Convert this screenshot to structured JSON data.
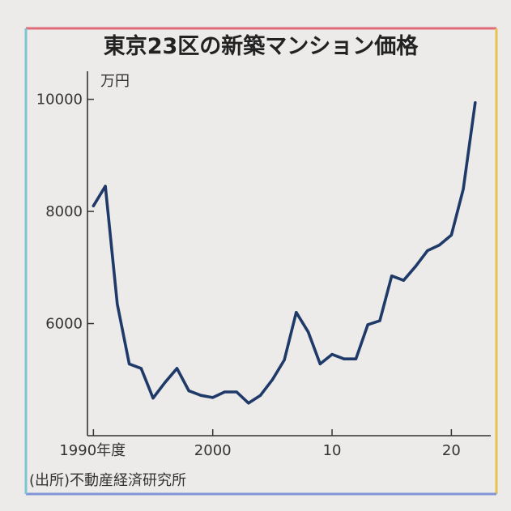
{
  "colors": {
    "background": "#ecebe9",
    "line": "#1f3a68",
    "border_top": "#e06b78",
    "border_right": "#e8c24a",
    "border_bottom": "#7f95d6",
    "border_left": "#7cc6cf",
    "axis": "#333333"
  },
  "chart_data": {
    "type": "line",
    "title": "東京23区の新築マンション価格",
    "unit_label": "万円",
    "source": "(出所)不動産経済研究所",
    "ylim": [
      4000,
      10500
    ],
    "xlim": [
      1989.5,
      2023.3
    ],
    "y_ticks": [
      {
        "value": 6000,
        "label": "6000"
      },
      {
        "value": 8000,
        "label": "8000"
      },
      {
        "value": 10000,
        "label": "10000"
      }
    ],
    "x_ticks": [
      {
        "value": 1990,
        "label": "1990年度"
      },
      {
        "value": 2000,
        "label": "2000"
      },
      {
        "value": 2010,
        "label": "10"
      },
      {
        "value": 2020,
        "label": "20"
      }
    ],
    "grid": false,
    "series": [
      {
        "x": [
          1990,
          1991,
          1992,
          1993,
          1994,
          1995,
          1996,
          1997,
          1998,
          1999,
          2000,
          2001,
          2002,
          2003,
          2004,
          2005,
          2006,
          2007,
          2008,
          2009,
          2010,
          2011,
          2012,
          2013,
          2014,
          2015,
          2016,
          2017,
          2018,
          2019,
          2020,
          2021,
          2022
        ],
        "values": [
          8100,
          8450,
          6350,
          5280,
          5200,
          4670,
          4950,
          5200,
          4800,
          4720,
          4680,
          4780,
          4780,
          4580,
          4720,
          5000,
          5350,
          6200,
          5850,
          5280,
          5450,
          5370,
          5370,
          5980,
          6050,
          6850,
          6770,
          7020,
          7300,
          7400,
          7580,
          8400,
          9940
        ]
      }
    ]
  }
}
